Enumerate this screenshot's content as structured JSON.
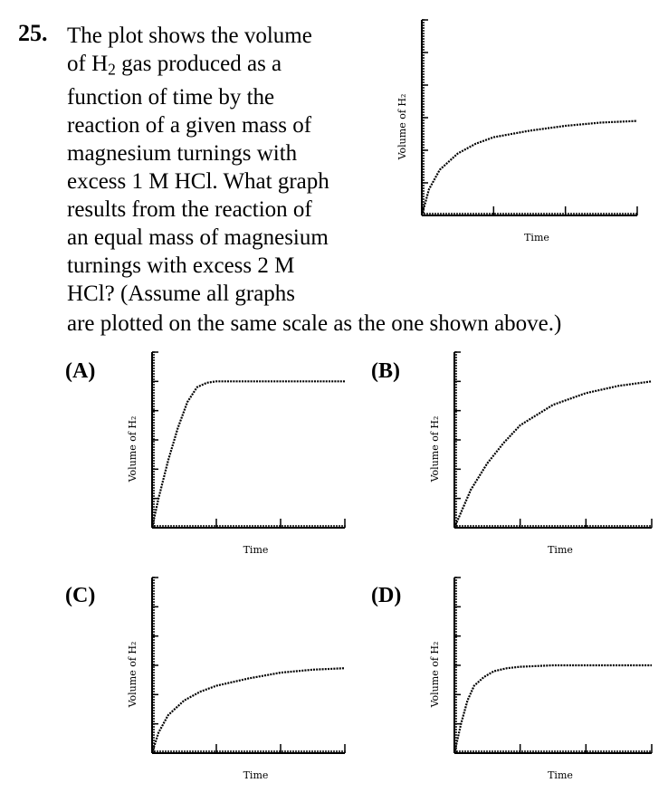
{
  "question": {
    "number": "25.",
    "lines": [
      "The plot shows the volume",
      [
        "of H",
        "2",
        " gas produced as a"
      ],
      "function of time by the",
      "reaction of a given mass of",
      "magnesium turnings with",
      "excess 1 M HCl. What graph",
      "results from the reaction of",
      "an equal mass of magnesium",
      "turnings with excess 2 M",
      "HCl? (Assume all graphs"
    ],
    "last_line": "are plotted on the same scale as the one shown above.)"
  },
  "axis_labels": {
    "x": "Time",
    "y": "Volume of H₂"
  },
  "options": [
    {
      "id": "main",
      "label": ""
    },
    {
      "id": "A",
      "label": "(A)"
    },
    {
      "id": "B",
      "label": "(B)"
    },
    {
      "id": "C",
      "label": "(C)"
    },
    {
      "id": "D",
      "label": "(D)"
    }
  ],
  "chart_data": [
    {
      "id": "main",
      "type": "line",
      "title": "",
      "xlabel": "Time",
      "ylabel": "Volume of H₂",
      "xlim": [
        0,
        3
      ],
      "ylim": [
        0,
        6
      ],
      "x_ticks": [
        1,
        2,
        3
      ],
      "y_ticks": [
        1,
        2,
        3,
        4,
        5
      ],
      "grid": false,
      "series": [
        {
          "x": [
            0,
            0.1,
            0.25,
            0.5,
            0.75,
            1.0,
            1.5,
            2.0,
            2.5,
            3.0
          ],
          "y": [
            0,
            0.8,
            1.4,
            1.9,
            2.2,
            2.4,
            2.6,
            2.75,
            2.85,
            2.9
          ]
        }
      ]
    },
    {
      "id": "A",
      "type": "line",
      "title": "",
      "xlabel": "Time",
      "ylabel": "Volume of H₂",
      "xlim": [
        0,
        3
      ],
      "ylim": [
        0,
        6
      ],
      "x_ticks": [
        1,
        2,
        3
      ],
      "y_ticks": [
        1,
        2,
        3,
        4,
        5
      ],
      "grid": false,
      "series": [
        {
          "x": [
            0,
            0.1,
            0.25,
            0.4,
            0.55,
            0.7,
            0.85,
            1.0,
            1.5,
            2.0,
            3.0
          ],
          "y": [
            0,
            1.0,
            2.3,
            3.4,
            4.3,
            4.8,
            4.95,
            5.0,
            5.0,
            5.0,
            5.0
          ]
        }
      ]
    },
    {
      "id": "B",
      "type": "line",
      "title": "",
      "xlabel": "Time",
      "ylabel": "Volume of H₂",
      "xlim": [
        0,
        3
      ],
      "ylim": [
        0,
        6
      ],
      "x_ticks": [
        1,
        2,
        3
      ],
      "y_ticks": [
        1,
        2,
        3,
        4,
        5
      ],
      "grid": false,
      "series": [
        {
          "x": [
            0,
            0.25,
            0.5,
            0.75,
            1.0,
            1.5,
            2.0,
            2.5,
            3.0
          ],
          "y": [
            0,
            1.3,
            2.2,
            2.9,
            3.5,
            4.2,
            4.6,
            4.85,
            5.0
          ]
        }
      ]
    },
    {
      "id": "C",
      "type": "line",
      "title": "",
      "xlabel": "Time",
      "ylabel": "Volume of H₂",
      "xlim": [
        0,
        3
      ],
      "ylim": [
        0,
        6
      ],
      "x_ticks": [
        1,
        2,
        3
      ],
      "y_ticks": [
        1,
        2,
        3,
        4,
        5
      ],
      "grid": false,
      "series": [
        {
          "x": [
            0,
            0.1,
            0.25,
            0.5,
            0.75,
            1.0,
            1.5,
            2.0,
            2.5,
            3.0
          ],
          "y": [
            0,
            0.7,
            1.3,
            1.8,
            2.1,
            2.3,
            2.55,
            2.75,
            2.85,
            2.9
          ]
        }
      ]
    },
    {
      "id": "D",
      "type": "line",
      "title": "",
      "xlabel": "Time",
      "ylabel": "Volume of H₂",
      "xlim": [
        0,
        3
      ],
      "ylim": [
        0,
        6
      ],
      "x_ticks": [
        1,
        2,
        3
      ],
      "y_ticks": [
        1,
        2,
        3,
        4,
        5
      ],
      "grid": false,
      "series": [
        {
          "x": [
            0,
            0.1,
            0.2,
            0.3,
            0.45,
            0.6,
            0.8,
            1.0,
            1.5,
            2.0,
            3.0
          ],
          "y": [
            0,
            1.0,
            1.8,
            2.3,
            2.6,
            2.8,
            2.9,
            2.95,
            3.0,
            3.0,
            3.0
          ]
        }
      ]
    }
  ]
}
